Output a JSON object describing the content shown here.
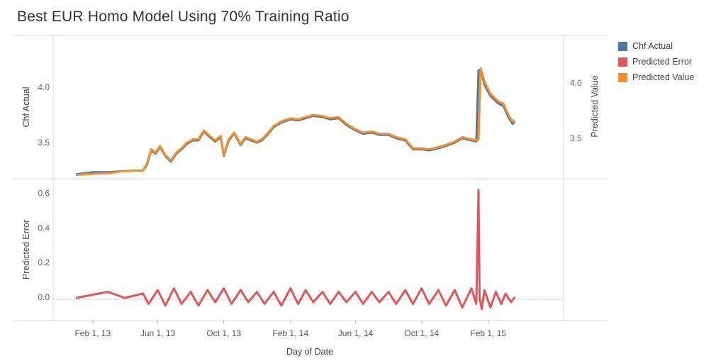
{
  "chart_title": "Best EUR Homo Model Using 70% Training Ratio",
  "legend": [
    {
      "label": "Chf Actual",
      "color": "#4e79a7"
    },
    {
      "label": "Predicted Error",
      "color": "#e15759"
    },
    {
      "label": "Predicted Value",
      "color": "#f28e2b"
    }
  ],
  "chart_data": [
    {
      "type": "line",
      "panel": "top",
      "ylabel_left": "Chf Actual",
      "ylabel_right": "Predicted Value",
      "left_ticks": [
        "4.0",
        "3.5"
      ],
      "right_ticks": [
        "4.0",
        "3.5"
      ],
      "ylim": [
        3.22,
        4.42
      ],
      "series": [
        {
          "name": "Chf Actual",
          "color": "#4e79a7",
          "points": [
            [
              "2013-01-01",
              3.215
            ],
            [
              "2013-02-01",
              3.235
            ],
            [
              "2013-03-01",
              3.235
            ],
            [
              "2013-04-01",
              3.245
            ],
            [
              "2013-05-05",
              3.25
            ],
            [
              "2013-05-12",
              3.3
            ],
            [
              "2013-05-20",
              3.43
            ],
            [
              "2013-05-28",
              3.4
            ],
            [
              "2013-06-05",
              3.46
            ],
            [
              "2013-06-15",
              3.38
            ],
            [
              "2013-06-25",
              3.33
            ],
            [
              "2013-07-05",
              3.4
            ],
            [
              "2013-07-15",
              3.44
            ],
            [
              "2013-07-25",
              3.49
            ],
            [
              "2013-08-05",
              3.52
            ],
            [
              "2013-08-15",
              3.52
            ],
            [
              "2013-08-25",
              3.6
            ],
            [
              "2013-09-05",
              3.55
            ],
            [
              "2013-09-15",
              3.51
            ],
            [
              "2013-09-25",
              3.55
            ],
            [
              "2013-10-01",
              3.38
            ],
            [
              "2013-10-10",
              3.52
            ],
            [
              "2013-10-20",
              3.58
            ],
            [
              "2013-11-01",
              3.48
            ],
            [
              "2013-11-10",
              3.54
            ],
            [
              "2013-11-20",
              3.52
            ],
            [
              "2013-12-01",
              3.5
            ],
            [
              "2013-12-10",
              3.52
            ],
            [
              "2013-12-20",
              3.57
            ],
            [
              "2014-01-01",
              3.64
            ],
            [
              "2014-01-15",
              3.68
            ],
            [
              "2014-02-01",
              3.71
            ],
            [
              "2014-02-15",
              3.7
            ],
            [
              "2014-03-01",
              3.72
            ],
            [
              "2014-03-15",
              3.74
            ],
            [
              "2014-04-01",
              3.73
            ],
            [
              "2014-04-15",
              3.71
            ],
            [
              "2014-05-01",
              3.72
            ],
            [
              "2014-05-15",
              3.66
            ],
            [
              "2014-06-01",
              3.61
            ],
            [
              "2014-06-15",
              3.58
            ],
            [
              "2014-07-01",
              3.59
            ],
            [
              "2014-07-15",
              3.57
            ],
            [
              "2014-08-01",
              3.57
            ],
            [
              "2014-08-15",
              3.54
            ],
            [
              "2014-09-01",
              3.52
            ],
            [
              "2014-09-15",
              3.44
            ],
            [
              "2014-10-01",
              3.44
            ],
            [
              "2014-10-15",
              3.43
            ],
            [
              "2014-11-01",
              3.45
            ],
            [
              "2014-11-15",
              3.47
            ],
            [
              "2014-12-01",
              3.5
            ],
            [
              "2014-12-15",
              3.54
            ],
            [
              "2015-01-01",
              3.52
            ],
            [
              "2015-01-10",
              3.51
            ],
            [
              "2015-01-14",
              4.15
            ],
            [
              "2015-01-18",
              4.16
            ],
            [
              "2015-01-25",
              4.02
            ],
            [
              "2015-02-05",
              3.92
            ],
            [
              "2015-02-20",
              3.85
            ],
            [
              "2015-03-01",
              3.83
            ],
            [
              "2015-03-10",
              3.73
            ],
            [
              "2015-03-18",
              3.67
            ],
            [
              "2015-03-22",
              3.69
            ]
          ]
        },
        {
          "name": "Predicted Value",
          "color": "#f28e2b",
          "points": [
            [
              "2013-01-01",
              3.21
            ],
            [
              "2013-02-01",
              3.22
            ],
            [
              "2013-03-01",
              3.225
            ],
            [
              "2013-04-01",
              3.245
            ],
            [
              "2013-05-05",
              3.25
            ],
            [
              "2013-05-12",
              3.31
            ],
            [
              "2013-05-20",
              3.44
            ],
            [
              "2013-05-28",
              3.41
            ],
            [
              "2013-06-05",
              3.47
            ],
            [
              "2013-06-15",
              3.39
            ],
            [
              "2013-06-25",
              3.34
            ],
            [
              "2013-07-05",
              3.41
            ],
            [
              "2013-07-15",
              3.45
            ],
            [
              "2013-07-25",
              3.5
            ],
            [
              "2013-08-05",
              3.53
            ],
            [
              "2013-08-15",
              3.53
            ],
            [
              "2013-08-25",
              3.61
            ],
            [
              "2013-09-05",
              3.56
            ],
            [
              "2013-09-15",
              3.52
            ],
            [
              "2013-09-25",
              3.56
            ],
            [
              "2013-10-01",
              3.39
            ],
            [
              "2013-10-10",
              3.53
            ],
            [
              "2013-10-20",
              3.59
            ],
            [
              "2013-11-01",
              3.49
            ],
            [
              "2013-11-10",
              3.55
            ],
            [
              "2013-11-20",
              3.53
            ],
            [
              "2013-12-01",
              3.51
            ],
            [
              "2013-12-10",
              3.53
            ],
            [
              "2013-12-20",
              3.58
            ],
            [
              "2014-01-01",
              3.65
            ],
            [
              "2014-01-15",
              3.69
            ],
            [
              "2014-02-01",
              3.72
            ],
            [
              "2014-02-15",
              3.71
            ],
            [
              "2014-03-01",
              3.73
            ],
            [
              "2014-03-15",
              3.75
            ],
            [
              "2014-04-01",
              3.74
            ],
            [
              "2014-04-15",
              3.72
            ],
            [
              "2014-05-01",
              3.73
            ],
            [
              "2014-05-15",
              3.67
            ],
            [
              "2014-06-01",
              3.62
            ],
            [
              "2014-06-15",
              3.59
            ],
            [
              "2014-07-01",
              3.6
            ],
            [
              "2014-07-15",
              3.58
            ],
            [
              "2014-08-01",
              3.58
            ],
            [
              "2014-08-15",
              3.55
            ],
            [
              "2014-09-01",
              3.53
            ],
            [
              "2014-09-15",
              3.45
            ],
            [
              "2014-10-01",
              3.45
            ],
            [
              "2014-10-15",
              3.44
            ],
            [
              "2014-11-01",
              3.46
            ],
            [
              "2014-11-15",
              3.48
            ],
            [
              "2014-12-01",
              3.51
            ],
            [
              "2014-12-15",
              3.55
            ],
            [
              "2015-01-01",
              3.53
            ],
            [
              "2015-01-10",
              3.52
            ],
            [
              "2015-01-14",
              3.53
            ],
            [
              "2015-01-18",
              4.17
            ],
            [
              "2015-01-25",
              4.05
            ],
            [
              "2015-02-05",
              3.94
            ],
            [
              "2015-02-20",
              3.87
            ],
            [
              "2015-03-01",
              3.85
            ],
            [
              "2015-03-10",
              3.75
            ],
            [
              "2015-03-18",
              3.69
            ],
            [
              "2015-03-22",
              3.7
            ]
          ]
        }
      ]
    },
    {
      "type": "line",
      "panel": "bottom",
      "ylabel": "Predicted Error",
      "ticks": [
        "0.6",
        "0.4",
        "0.2",
        "0.0"
      ],
      "ylim": [
        -0.12,
        0.66
      ],
      "series": [
        {
          "name": "Predicted Error",
          "color": "#e15759",
          "points": [
            [
              "2013-01-01",
              -0.005
            ],
            [
              "2013-03-01",
              0.03
            ],
            [
              "2013-04-01",
              -0.005
            ],
            [
              "2013-05-05",
              0.02
            ],
            [
              "2013-05-15",
              -0.04
            ],
            [
              "2013-06-01",
              0.04
            ],
            [
              "2013-06-15",
              -0.05
            ],
            [
              "2013-07-01",
              0.05
            ],
            [
              "2013-07-15",
              -0.04
            ],
            [
              "2013-08-01",
              0.03
            ],
            [
              "2013-08-15",
              -0.05
            ],
            [
              "2013-09-01",
              0.04
            ],
            [
              "2013-09-15",
              -0.03
            ],
            [
              "2013-10-01",
              0.05
            ],
            [
              "2013-10-15",
              -0.04
            ],
            [
              "2013-11-01",
              0.04
            ],
            [
              "2013-11-15",
              -0.03
            ],
            [
              "2013-12-01",
              0.03
            ],
            [
              "2013-12-15",
              -0.04
            ],
            [
              "2014-01-01",
              0.03
            ],
            [
              "2014-01-15",
              -0.05
            ],
            [
              "2014-02-01",
              0.05
            ],
            [
              "2014-02-15",
              -0.04
            ],
            [
              "2014-03-01",
              0.04
            ],
            [
              "2014-03-15",
              -0.03
            ],
            [
              "2014-04-01",
              0.03
            ],
            [
              "2014-04-15",
              -0.04
            ],
            [
              "2014-05-01",
              0.03
            ],
            [
              "2014-05-15",
              -0.03
            ],
            [
              "2014-06-01",
              0.03
            ],
            [
              "2014-06-15",
              -0.04
            ],
            [
              "2014-07-01",
              0.03
            ],
            [
              "2014-07-15",
              -0.03
            ],
            [
              "2014-08-01",
              0.03
            ],
            [
              "2014-08-15",
              -0.04
            ],
            [
              "2014-09-01",
              0.04
            ],
            [
              "2014-09-15",
              -0.04
            ],
            [
              "2014-10-01",
              0.05
            ],
            [
              "2014-10-15",
              -0.04
            ],
            [
              "2014-11-01",
              0.04
            ],
            [
              "2014-11-15",
              -0.05
            ],
            [
              "2014-12-01",
              0.04
            ],
            [
              "2014-12-15",
              -0.06
            ],
            [
              "2015-01-01",
              0.05
            ],
            [
              "2015-01-10",
              -0.04
            ],
            [
              "2015-01-14",
              0.62
            ],
            [
              "2015-01-16",
              0.0
            ],
            [
              "2015-01-20",
              -0.07
            ],
            [
              "2015-01-25",
              0.04
            ],
            [
              "2015-02-05",
              -0.06
            ],
            [
              "2015-02-15",
              0.03
            ],
            [
              "2015-02-25",
              -0.04
            ],
            [
              "2015-03-05",
              0.02
            ],
            [
              "2015-03-15",
              -0.03
            ],
            [
              "2015-03-22",
              0.0
            ]
          ]
        }
      ]
    }
  ],
  "x_axis": {
    "label": "Day of Date",
    "ticks": [
      {
        "label": "Feb 1, 13",
        "date": "2013-02-01"
      },
      {
        "label": "Jun 1, 13",
        "date": "2013-06-01"
      },
      {
        "label": "Oct 1, 13",
        "date": "2013-10-01"
      },
      {
        "label": "Feb 1, 14",
        "date": "2014-02-01"
      },
      {
        "label": "Jun 1, 14",
        "date": "2014-06-01"
      },
      {
        "label": "Oct 1, 14",
        "date": "2014-10-01"
      },
      {
        "label": "Feb 1, 15",
        "date": "2015-02-01"
      }
    ]
  }
}
